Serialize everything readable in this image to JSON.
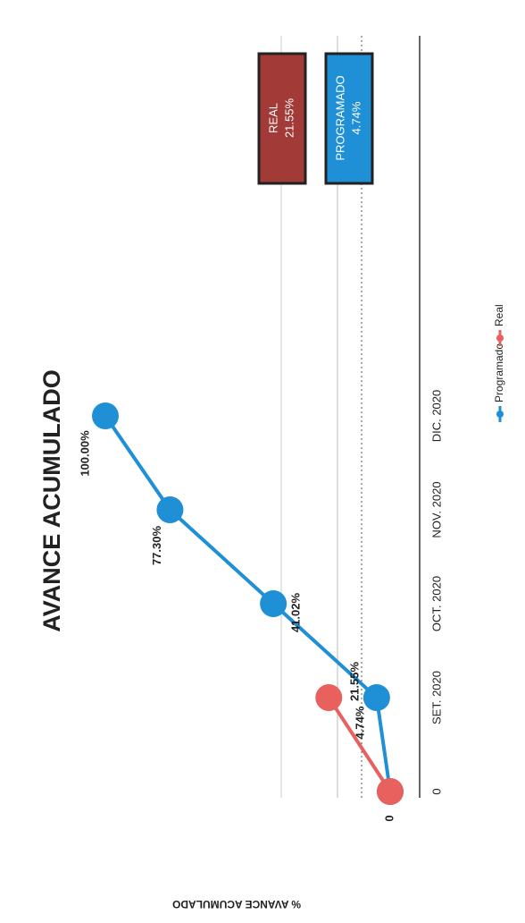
{
  "chart_data": {
    "type": "line",
    "title": "AVANCE ACUMULADO",
    "y_label": "% AVANCE ACUMULADO",
    "categories": [
      "0",
      "SET. 2020",
      "OCT. 2020",
      "NOV. 2020",
      "DIC. 2020"
    ],
    "series": [
      {
        "name": "Programado",
        "color": "#1f8fd6",
        "values": [
          0,
          4.74,
          41.02,
          77.3,
          100.0
        ],
        "value_labels": [
          null,
          "4.74%",
          "41.02%",
          "77.30%",
          "100.00%"
        ]
      },
      {
        "name": "Real",
        "color": "#e8615f",
        "values": [
          0,
          21.55,
          null,
          null,
          null
        ],
        "value_labels": [
          null,
          "21.55%",
          null,
          null,
          null
        ]
      }
    ],
    "ylim": [
      0,
      100
    ],
    "yticks": [
      0
    ],
    "legend": "bottom",
    "summary_boxes": [
      {
        "label": "REAL",
        "value_label": "21.55%",
        "color": "#a23b38"
      },
      {
        "label": "PROGRAMADO",
        "value_label": "4.74%",
        "color": "#1f8fd6"
      }
    ]
  }
}
